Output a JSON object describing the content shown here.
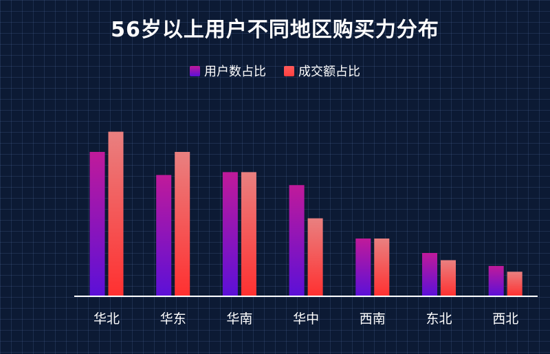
{
  "chart_data": {
    "type": "bar",
    "title": "56岁以上用户不同地区购买力分布",
    "categories": [
      "华北",
      "华东",
      "华南",
      "华中",
      "西南",
      "东北",
      "西北"
    ],
    "series": [
      {
        "name": "用户数占比",
        "values": [
          100,
          84,
          86,
          77,
          40,
          30,
          21
        ]
      },
      {
        "name": "成交额占比",
        "values": [
          114,
          100,
          86,
          54,
          40,
          25,
          17
        ]
      }
    ],
    "ylim": [
      0,
      120
    ],
    "grid": true,
    "legend_position": "top-center",
    "colors": {
      "users_top": "#c01a9a",
      "users_bottom": "#5b10d8",
      "trans_top": "#e98080",
      "trans_bottom": "#ff3030",
      "axis": "#ffffff",
      "text": "#ffffff",
      "background": "#0c1a34"
    }
  }
}
